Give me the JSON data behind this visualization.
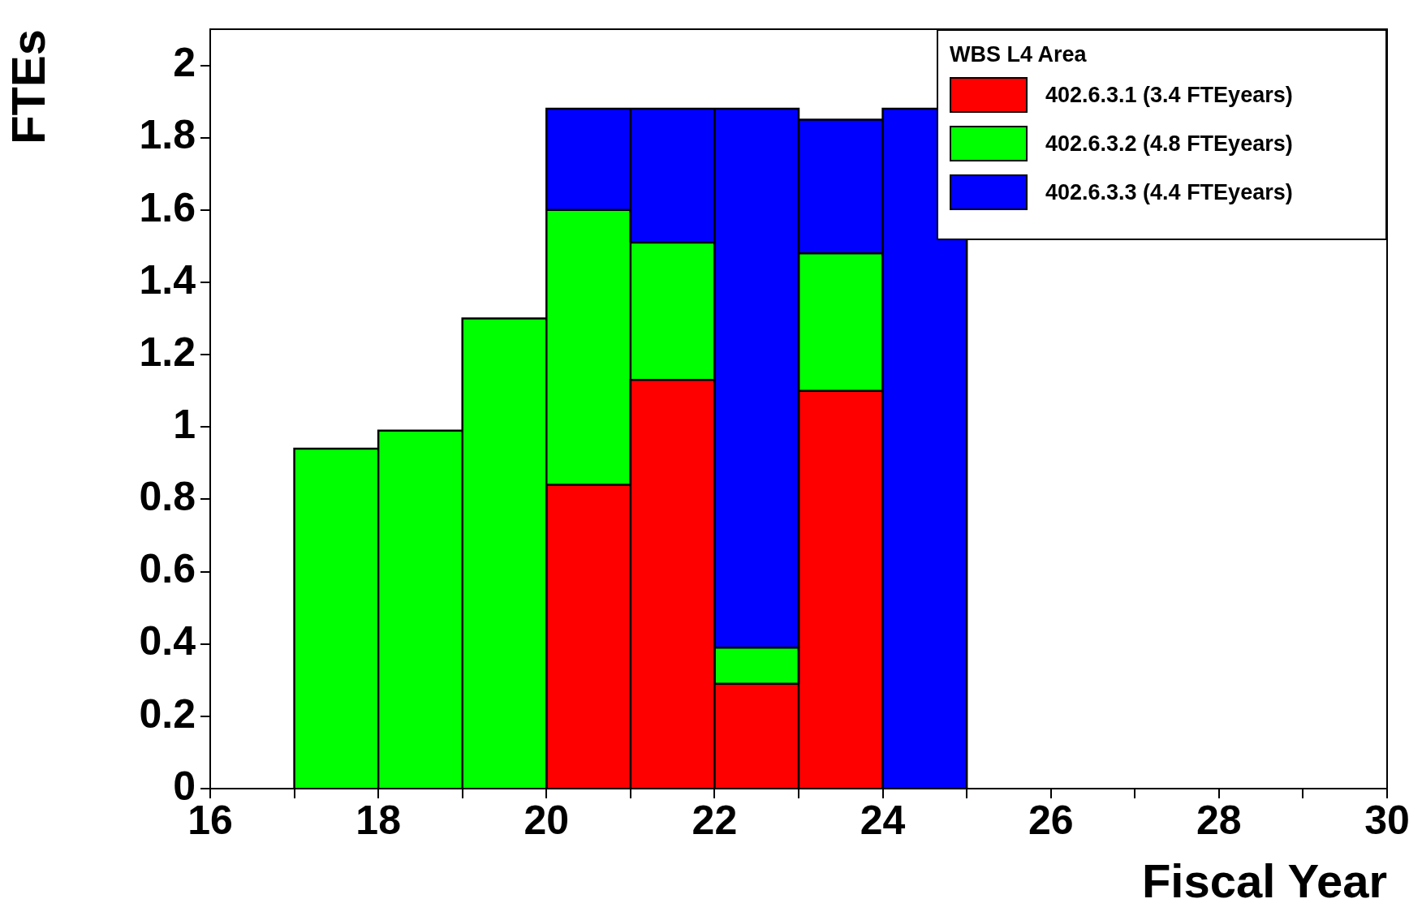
{
  "chart_data": {
    "type": "bar",
    "xlabel": "Fiscal Year",
    "ylabel": "FTEs",
    "legend_title": "WBS L4 Area",
    "legend": "top right",
    "stacked": true,
    "x": [
      17.5,
      18.5,
      19.5,
      20.5,
      21.5,
      22.5,
      23.5,
      24.5
    ],
    "series": [
      {
        "name": "402.6.3.1 (3.4 FTEyears)",
        "color": "#ff0000",
        "values": [
          0,
          0,
          0,
          0.84,
          1.13,
          0.29,
          1.1,
          0
        ]
      },
      {
        "name": "402.6.3.2 (4.8 FTEyears)",
        "color": "#00ff00",
        "values": [
          0.94,
          0.99,
          1.3,
          0.76,
          0.38,
          0.1,
          0.38,
          0
        ]
      },
      {
        "name": "402.6.3.3 (4.4 FTEyears)",
        "color": "#0000ff",
        "values": [
          0,
          0,
          0,
          0.28,
          0.37,
          1.49,
          0.37,
          1.88
        ]
      }
    ],
    "xlim": [
      16,
      30
    ],
    "xticks": [
      16,
      {
        "value": 17,
        "label": null
      },
      18,
      {
        "value": 19,
        "label": null
      },
      20,
      {
        "value": 21,
        "label": null
      },
      22,
      {
        "value": 23,
        "label": null
      },
      24,
      {
        "value": 25,
        "label": null
      },
      26,
      {
        "value": 27,
        "label": null
      },
      28,
      {
        "value": 29,
        "label": null
      },
      30
    ],
    "ylim": [
      0,
      2.1
    ],
    "yticks": [
      0,
      0.2,
      0.4,
      0.6,
      0.8,
      1,
      1.2,
      1.4,
      1.6,
      1.8,
      2
    ],
    "grid": false
  }
}
